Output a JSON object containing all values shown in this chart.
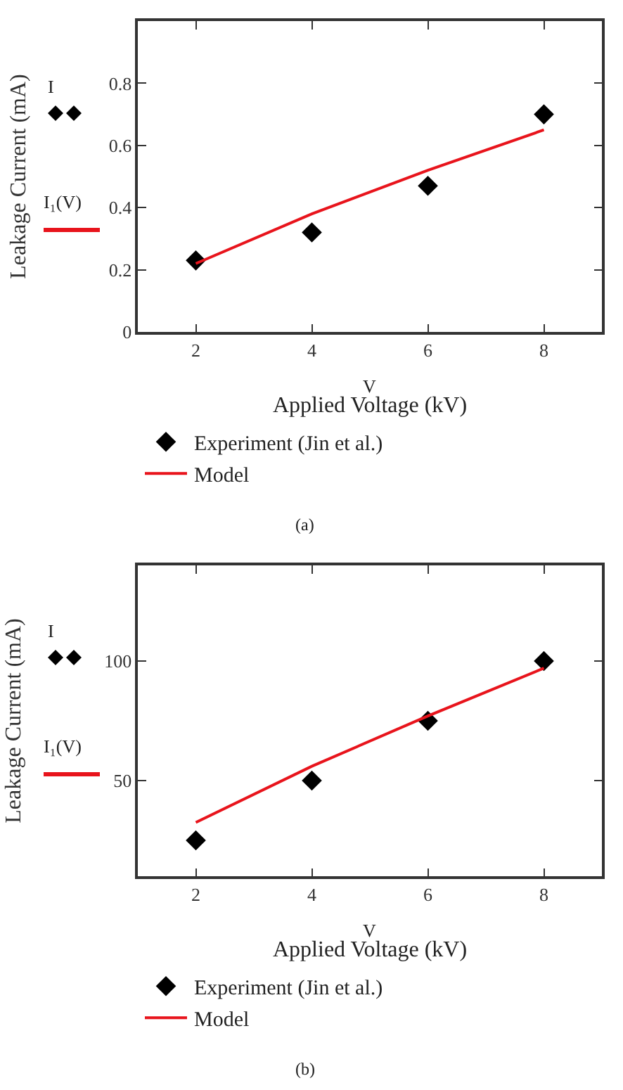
{
  "chart_data": [
    {
      "type": "scatter",
      "xlabel": "Applied Voltage (kV)",
      "ylabel": "Leakage Current (mA)",
      "x": [
        2,
        4,
        6,
        8
      ],
      "xlim": [
        1,
        9
      ],
      "xticks": [
        2,
        4,
        6,
        8
      ],
      "ylim": [
        0,
        1
      ],
      "yticks": [
        0,
        0.2,
        0.4,
        0.6,
        0.8
      ],
      "legend": "bottom",
      "grid": false,
      "series": [
        {
          "name": "Experiment (Jin et al.)",
          "type": "scatter",
          "marker": "diamond",
          "color": "#000000",
          "values": [
            0.23,
            0.32,
            0.47,
            0.7
          ]
        },
        {
          "name": "Model",
          "type": "line",
          "line_style": "solid",
          "color": "#e8141c",
          "values": [
            0.22,
            0.38,
            0.52,
            0.65
          ]
        }
      ],
      "annotations": [
        "V",
        "I",
        "I₁(V)",
        "(a)"
      ]
    },
    {
      "type": "scatter",
      "xlabel": "Applied Voltage (kV)",
      "ylabel": "Leakage Current (mA)",
      "x": [
        2,
        4,
        6,
        8
      ],
      "xlim": [
        1,
        9
      ],
      "xticks": [
        2,
        4,
        6,
        8
      ],
      "ylim": [
        10,
        140
      ],
      "yticks": [
        50,
        100
      ],
      "legend": "bottom",
      "grid": false,
      "series": [
        {
          "name": "Experiment (Jin et al.)",
          "type": "scatter",
          "marker": "diamond",
          "color": "#000000",
          "values": [
            25,
            50,
            75,
            100
          ]
        },
        {
          "name": "Model",
          "type": "line",
          "line_style": "solid",
          "color": "#e8141c",
          "values": [
            32.5,
            56,
            77,
            97
          ]
        }
      ],
      "annotations": [
        "V",
        "I",
        "I₁(V)",
        "(b)"
      ]
    }
  ]
}
